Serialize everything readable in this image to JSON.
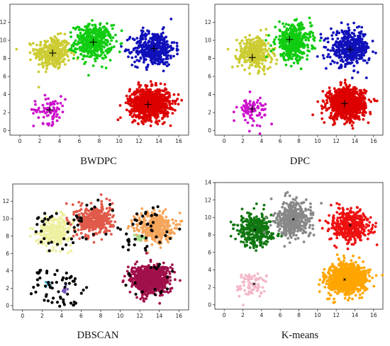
{
  "chart_data": [
    {
      "type": "scatter",
      "title": "BWDPC",
      "xlim": [
        -1,
        17
      ],
      "ylim": [
        -0.5,
        14
      ],
      "xticks": [
        "0",
        "2",
        "4",
        "6",
        "8",
        "10",
        "12",
        "14",
        "16"
      ],
      "yticks": [
        "0",
        "2",
        "4",
        "6",
        "8",
        "10",
        "12"
      ],
      "clusters": [
        {
          "color": "#cccc33",
          "center": [
            3.3,
            8.6
          ],
          "spread": [
            0.9,
            0.9
          ],
          "count": 320
        },
        {
          "color": "#11cc11",
          "center": [
            7.4,
            9.8
          ],
          "spread": [
            0.95,
            0.95
          ],
          "count": 420
        },
        {
          "color": "#1111bb",
          "center": [
            13.5,
            9.1
          ],
          "spread": [
            1.05,
            0.95
          ],
          "count": 420
        },
        {
          "color": "#cc11cc",
          "center": [
            3.0,
            2.3
          ],
          "spread": [
            0.8,
            0.75
          ],
          "count": 80
        },
        {
          "color": "#dd0000",
          "center": [
            13.1,
            3.0
          ],
          "spread": [
            1.0,
            0.85
          ],
          "count": 900
        }
      ],
      "centers": [
        [
          3.3,
          8.6
        ],
        [
          7.4,
          9.8
        ],
        [
          13.5,
          9.1
        ],
        [
          3.0,
          2.3
        ],
        [
          12.9,
          2.9
        ]
      ],
      "center_marker": "plus"
    },
    {
      "type": "scatter",
      "title": "DPC",
      "xlim": [
        -1,
        17
      ],
      "ylim": [
        -0.5,
        14
      ],
      "xticks": [
        "0",
        "2",
        "4",
        "6",
        "8",
        "10",
        "12",
        "14",
        "16"
      ],
      "yticks": [
        "0",
        "2",
        "4",
        "6",
        "8",
        "10",
        "12"
      ],
      "clusters": [
        {
          "color": "#cccc33",
          "center": [
            3.3,
            8.6
          ],
          "spread": [
            0.9,
            0.9
          ],
          "count": 320
        },
        {
          "color": "#11cc11",
          "center": [
            7.4,
            9.8
          ],
          "spread": [
            0.95,
            0.95
          ],
          "count": 420
        },
        {
          "color": "#1111bb",
          "center": [
            13.5,
            9.1
          ],
          "spread": [
            1.05,
            0.95
          ],
          "count": 420
        },
        {
          "color": "#cc11cc",
          "center": [
            3.0,
            2.3
          ],
          "spread": [
            0.8,
            0.75
          ],
          "count": 80
        },
        {
          "color": "#dd0000",
          "center": [
            13.1,
            3.0
          ],
          "spread": [
            1.0,
            0.85
          ],
          "count": 900
        }
      ],
      "centers": [
        [
          3.0,
          8.1
        ],
        [
          7.0,
          10.1
        ],
        [
          13.5,
          9.0
        ],
        [
          3.0,
          2.4
        ],
        [
          12.9,
          3.0
        ]
      ],
      "center_marker": "plus"
    },
    {
      "type": "scatter",
      "title": "DBSCAN",
      "xlim": [
        -1,
        17
      ],
      "ylim": [
        -0.5,
        14
      ],
      "xticks": [
        "0",
        "2",
        "4",
        "6",
        "8",
        "10",
        "12",
        "14",
        "16"
      ],
      "yticks": [
        "0",
        "2",
        "4",
        "6",
        "8",
        "10",
        "12"
      ],
      "clusters": [
        {
          "color": "#eef0a0",
          "center": [
            3.3,
            8.6
          ],
          "spread": [
            0.85,
            0.85
          ],
          "count": 280
        },
        {
          "color": "#e05a4a",
          "center": [
            7.4,
            9.8
          ],
          "spread": [
            0.9,
            0.9
          ],
          "count": 380
        },
        {
          "color": "#f5a55a",
          "center": [
            13.5,
            9.1
          ],
          "spread": [
            0.95,
            0.85
          ],
          "count": 360
        },
        {
          "color": "#a0dd88",
          "center": [
            12.0,
            8.0
          ],
          "spread": [
            0.3,
            0.3
          ],
          "count": 14
        },
        {
          "color": "#44aacc",
          "center": [
            2.8,
            2.4
          ],
          "spread": [
            0.25,
            0.2
          ],
          "count": 10
        },
        {
          "color": "#7755bb",
          "center": [
            4.4,
            1.8
          ],
          "spread": [
            0.2,
            0.2
          ],
          "count": 8
        },
        {
          "color": "#a0104a",
          "center": [
            13.1,
            3.0
          ],
          "spread": [
            0.95,
            0.8
          ],
          "count": 880
        }
      ],
      "noise": {
        "color": "#000000",
        "count": 170
      },
      "centers": [],
      "center_marker": "none"
    },
    {
      "type": "scatter",
      "title": "K-means",
      "xlim": [
        -1,
        17
      ],
      "ylim": [
        -0.5,
        14
      ],
      "xticks": [
        "0",
        "2",
        "4",
        "6",
        "8",
        "10",
        "12",
        "14",
        "16"
      ],
      "yticks": [
        "0",
        "2",
        "4",
        "6",
        "8",
        "10",
        "12",
        "14"
      ],
      "clusters": [
        {
          "color": "#117711",
          "center": [
            3.3,
            8.6
          ],
          "spread": [
            0.9,
            0.9
          ],
          "count": 320
        },
        {
          "color": "#888888",
          "center": [
            7.4,
            9.8
          ],
          "spread": [
            0.95,
            0.95
          ],
          "count": 420
        },
        {
          "color": "#ee1111",
          "center": [
            13.5,
            9.1
          ],
          "spread": [
            1.05,
            0.95
          ],
          "count": 420
        },
        {
          "color": "#f4b8c8",
          "center": [
            3.0,
            2.3
          ],
          "spread": [
            0.8,
            0.75
          ],
          "count": 80
        },
        {
          "color": "#ffa500",
          "center": [
            13.1,
            3.0
          ],
          "spread": [
            1.0,
            0.85
          ],
          "count": 900
        }
      ],
      "centers": [
        [
          3.3,
          8.6
        ],
        [
          7.4,
          9.8
        ],
        [
          13.5,
          9.1
        ],
        [
          3.2,
          2.4
        ],
        [
          12.9,
          2.9
        ]
      ],
      "center_marker": "x"
    }
  ]
}
